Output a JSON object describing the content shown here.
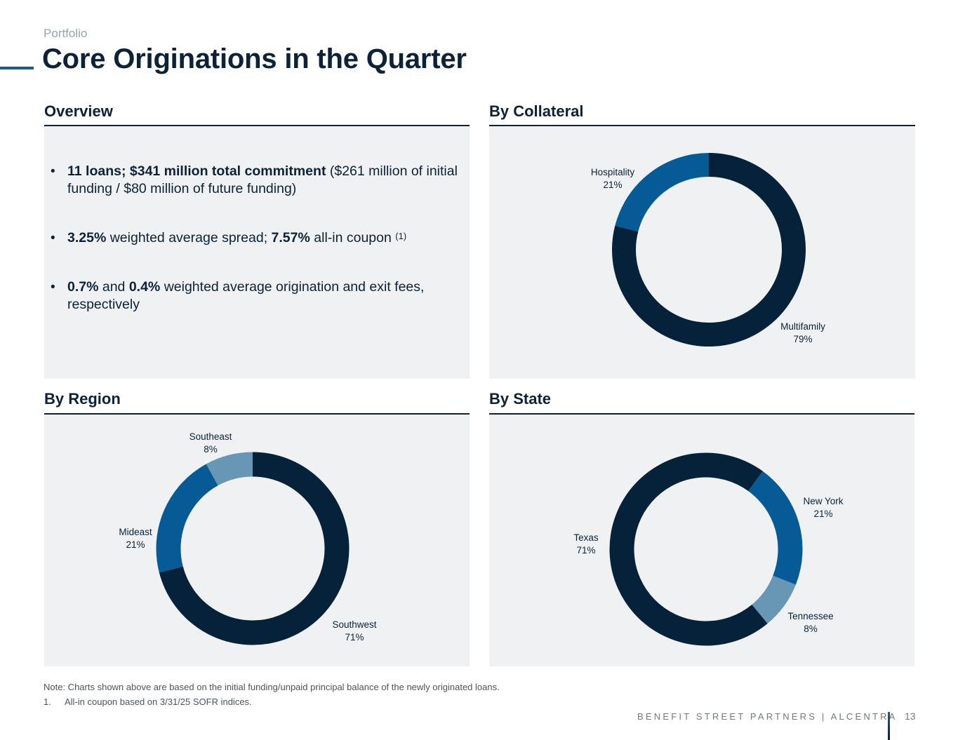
{
  "header": {
    "eyebrow": "Portfolio",
    "title": "Core Originations in the Quarter"
  },
  "overview": {
    "heading": "Overview",
    "bullets": [
      {
        "bold1": "11 loans; $341 million total commitment",
        "text1": " ($261 million of initial funding / $80 million of future funding)"
      },
      {
        "bold1": "3.25%",
        "text1": " weighted average spread; ",
        "bold2": "7.57%",
        "text2": " all-in coupon ",
        "sup": "(1)"
      },
      {
        "bold1": "0.7%",
        "text1": " and ",
        "bold2": "0.4%",
        "text2": " weighted average origination and exit fees, respectively"
      }
    ]
  },
  "colors": {
    "navy": "#05223a",
    "blue": "#065a96",
    "lightblue": "#6897b5",
    "panel": "#eff1f2"
  },
  "chart_data": [
    {
      "id": "collateral",
      "type": "pie",
      "title": "By Collateral",
      "slices": [
        {
          "label": "Multifamily",
          "value": 79,
          "display": "79%",
          "color": "#05223a"
        },
        {
          "label": "Hospitality",
          "value": 21,
          "display": "21%",
          "color": "#065a96"
        }
      ]
    },
    {
      "id": "region",
      "type": "pie",
      "title": "By Region",
      "slices": [
        {
          "label": "Southwest",
          "value": 71,
          "display": "71%",
          "color": "#05223a"
        },
        {
          "label": "Mideast",
          "value": 21,
          "display": "21%",
          "color": "#065a96"
        },
        {
          "label": "Southeast",
          "value": 8,
          "display": "8%",
          "color": "#6897b5"
        }
      ]
    },
    {
      "id": "state",
      "type": "pie",
      "title": "By State",
      "slices": [
        {
          "label": "New York",
          "value": 21,
          "display": "21%",
          "color": "#065a96"
        },
        {
          "label": "Tennessee",
          "value": 8,
          "display": "8%",
          "color": "#6897b5"
        },
        {
          "label": "Texas",
          "value": 71,
          "display": "71%",
          "color": "#05223a"
        }
      ]
    }
  ],
  "footer": {
    "note": "Note: Charts shown above are based on the initial funding/unpaid principal balance of the newly originated loans.",
    "footnote_num": "1.",
    "footnote_text": "All-in coupon based on 3/31/25 SOFR indices.",
    "brand": "BENEFIT STREET PARTNERS | ALCENTRA",
    "page_number": "13"
  }
}
